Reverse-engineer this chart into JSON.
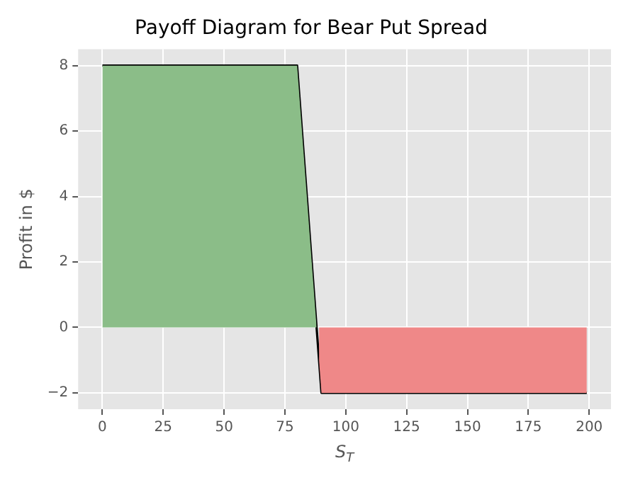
{
  "chart_data": {
    "type": "line",
    "title": "Payoff Diagram for Bear Put Spread",
    "xlabel": "S$_{T}$",
    "ylabel": "Profit in $",
    "series": [
      {
        "type": "area",
        "color": "#8bbd88",
        "x": [
          0,
          80,
          88
        ],
        "values": [
          8,
          8,
          0
        ]
      },
      {
        "type": "area",
        "color": "#ef8888",
        "x": [
          89,
          90,
          199
        ],
        "values": [
          -1,
          -2,
          -2
        ]
      },
      {
        "type": "line",
        "color": "#000000",
        "x": [
          0,
          80,
          90,
          199
        ],
        "values": [
          8,
          8,
          -2,
          -2
        ]
      }
    ],
    "xlim": [
      -9.95,
      208.95
    ],
    "xticks": [
      0,
      25,
      50,
      75,
      100,
      125,
      150,
      175,
      200
    ],
    "ylim": [
      -2.5,
      8.5
    ],
    "yticks": [
      -2,
      0,
      2,
      4,
      6,
      8
    ],
    "grid": true
  }
}
